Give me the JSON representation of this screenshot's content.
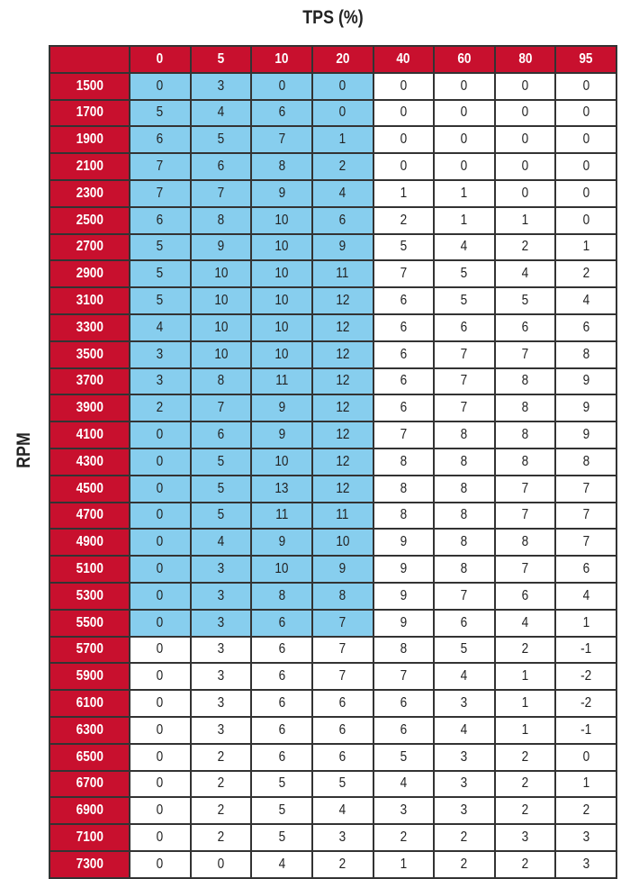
{
  "title": "TPS (%)",
  "ylabel": "RPM",
  "colors": {
    "header": "#c8102e",
    "highlight": "#87ceee",
    "cell": "#ffffff"
  },
  "columns": [
    "0",
    "5",
    "10",
    "20",
    "40",
    "60",
    "80",
    "95"
  ],
  "highlight": {
    "through_rpm": "5500",
    "columns": [
      "0",
      "5",
      "10",
      "20"
    ]
  },
  "rows": [
    {
      "rpm": "1500",
      "values": [
        "0",
        "3",
        "0",
        "0",
        "0",
        "0",
        "0",
        "0"
      ]
    },
    {
      "rpm": "1700",
      "values": [
        "5",
        "4",
        "6",
        "0",
        "0",
        "0",
        "0",
        "0"
      ]
    },
    {
      "rpm": "1900",
      "values": [
        "6",
        "5",
        "7",
        "1",
        "0",
        "0",
        "0",
        "0"
      ]
    },
    {
      "rpm": "2100",
      "values": [
        "7",
        "6",
        "8",
        "2",
        "0",
        "0",
        "0",
        "0"
      ]
    },
    {
      "rpm": "2300",
      "values": [
        "7",
        "7",
        "9",
        "4",
        "1",
        "1",
        "0",
        "0"
      ]
    },
    {
      "rpm": "2500",
      "values": [
        "6",
        "8",
        "10",
        "6",
        "2",
        "1",
        "1",
        "0"
      ]
    },
    {
      "rpm": "2700",
      "values": [
        "5",
        "9",
        "10",
        "9",
        "5",
        "4",
        "2",
        "1"
      ]
    },
    {
      "rpm": "2900",
      "values": [
        "5",
        "10",
        "10",
        "11",
        "7",
        "5",
        "4",
        "2"
      ]
    },
    {
      "rpm": "3100",
      "values": [
        "5",
        "10",
        "10",
        "12",
        "6",
        "5",
        "5",
        "4"
      ]
    },
    {
      "rpm": "3300",
      "values": [
        "4",
        "10",
        "10",
        "12",
        "6",
        "6",
        "6",
        "6"
      ]
    },
    {
      "rpm": "3500",
      "values": [
        "3",
        "10",
        "10",
        "12",
        "6",
        "7",
        "7",
        "8"
      ]
    },
    {
      "rpm": "3700",
      "values": [
        "3",
        "8",
        "11",
        "12",
        "6",
        "7",
        "8",
        "9"
      ]
    },
    {
      "rpm": "3900",
      "values": [
        "2",
        "7",
        "9",
        "12",
        "6",
        "7",
        "8",
        "9"
      ]
    },
    {
      "rpm": "4100",
      "values": [
        "0",
        "6",
        "9",
        "12",
        "7",
        "8",
        "8",
        "9"
      ]
    },
    {
      "rpm": "4300",
      "values": [
        "0",
        "5",
        "10",
        "12",
        "8",
        "8",
        "8",
        "8"
      ]
    },
    {
      "rpm": "4500",
      "values": [
        "0",
        "5",
        "13",
        "12",
        "8",
        "8",
        "7",
        "7"
      ]
    },
    {
      "rpm": "4700",
      "values": [
        "0",
        "5",
        "11",
        "11",
        "8",
        "8",
        "7",
        "7"
      ]
    },
    {
      "rpm": "4900",
      "values": [
        "0",
        "4",
        "9",
        "10",
        "9",
        "8",
        "8",
        "7"
      ]
    },
    {
      "rpm": "5100",
      "values": [
        "0",
        "3",
        "10",
        "9",
        "9",
        "8",
        "7",
        "6"
      ]
    },
    {
      "rpm": "5300",
      "values": [
        "0",
        "3",
        "8",
        "8",
        "9",
        "7",
        "6",
        "4"
      ]
    },
    {
      "rpm": "5500",
      "values": [
        "0",
        "3",
        "6",
        "7",
        "9",
        "6",
        "4",
        "1"
      ]
    },
    {
      "rpm": "5700",
      "values": [
        "0",
        "3",
        "6",
        "7",
        "8",
        "5",
        "2",
        "-1"
      ]
    },
    {
      "rpm": "5900",
      "values": [
        "0",
        "3",
        "6",
        "7",
        "7",
        "4",
        "1",
        "-2"
      ]
    },
    {
      "rpm": "6100",
      "values": [
        "0",
        "3",
        "6",
        "6",
        "6",
        "3",
        "1",
        "-2"
      ]
    },
    {
      "rpm": "6300",
      "values": [
        "0",
        "3",
        "6",
        "6",
        "6",
        "4",
        "1",
        "-1"
      ]
    },
    {
      "rpm": "6500",
      "values": [
        "0",
        "2",
        "6",
        "6",
        "5",
        "3",
        "2",
        "0"
      ]
    },
    {
      "rpm": "6700",
      "values": [
        "0",
        "2",
        "5",
        "5",
        "4",
        "3",
        "2",
        "1"
      ]
    },
    {
      "rpm": "6900",
      "values": [
        "0",
        "2",
        "5",
        "4",
        "3",
        "3",
        "2",
        "2"
      ]
    },
    {
      "rpm": "7100",
      "values": [
        "0",
        "2",
        "5",
        "3",
        "2",
        "2",
        "3",
        "3"
      ]
    },
    {
      "rpm": "7300",
      "values": [
        "0",
        "0",
        "4",
        "2",
        "1",
        "2",
        "2",
        "3"
      ]
    }
  ]
}
